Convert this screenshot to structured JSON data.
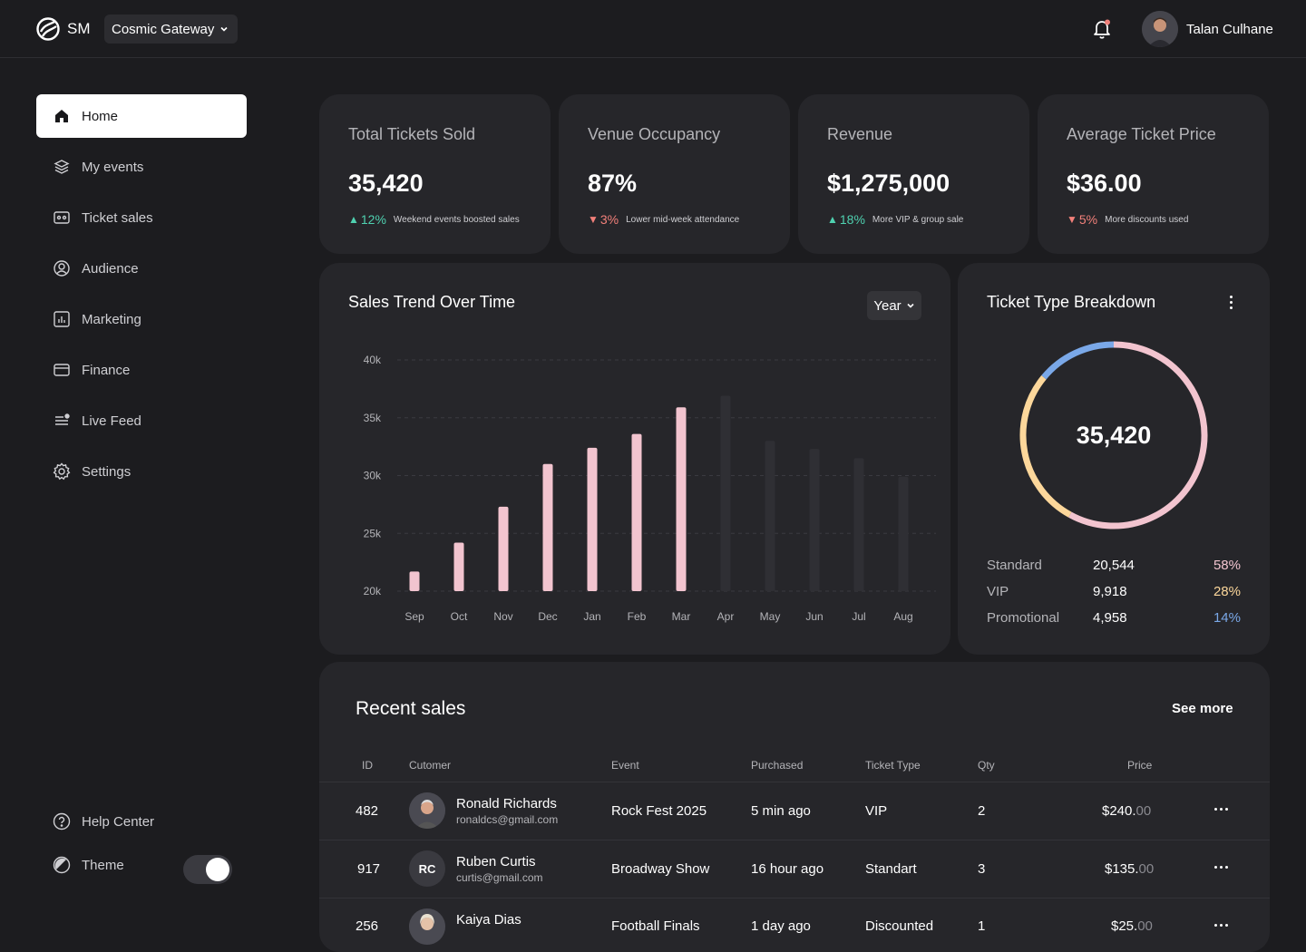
{
  "brand": {
    "logo_text": "SM",
    "org": "Cosmic Gateway"
  },
  "user": {
    "name": "Talan Culhane"
  },
  "sidebar": {
    "items": [
      {
        "label": "Home",
        "icon": "home-icon"
      },
      {
        "label": "My events",
        "icon": "layers-icon"
      },
      {
        "label": "Ticket sales",
        "icon": "ticket-icon"
      },
      {
        "label": "Audience",
        "icon": "user-icon"
      },
      {
        "label": "Marketing",
        "icon": "bar-chart-icon"
      },
      {
        "label": "Finance",
        "icon": "card-icon"
      },
      {
        "label": "Live Feed",
        "icon": "feed-icon"
      },
      {
        "label": "Settings",
        "icon": "gear-icon"
      }
    ],
    "help": "Help Center",
    "theme": "Theme"
  },
  "kpis": [
    {
      "title": "Total Tickets Sold",
      "value": "35,420",
      "delta": "12%",
      "dir": "up",
      "note": "Weekend events boosted sales"
    },
    {
      "title": "Venue Occupancy",
      "value": "87%",
      "delta": "3%",
      "dir": "down",
      "note": "Lower mid-week attendance"
    },
    {
      "title": "Revenue",
      "value": "$1,275,000",
      "delta": "18%",
      "dir": "up",
      "note": "More VIP & group sale"
    },
    {
      "title": "Average Ticket Price",
      "value": "$36.00",
      "delta": "5%",
      "dir": "down",
      "note": "More discounts used"
    }
  ],
  "trend": {
    "title": "Sales Trend Over Time",
    "period": "Year"
  },
  "chart_data": {
    "type": "bar",
    "categories": [
      "Sep",
      "Oct",
      "Nov",
      "Dec",
      "Jan",
      "Feb",
      "Mar",
      "Apr",
      "May",
      "Jun",
      "Jul",
      "Aug"
    ],
    "values": [
      21700,
      24200,
      27300,
      31000,
      32400,
      33600,
      35900,
      36900,
      33000,
      32300,
      31500,
      29900
    ],
    "highlighted": [
      true,
      true,
      true,
      true,
      true,
      true,
      true,
      false,
      false,
      false,
      false,
      false
    ],
    "ylim": [
      20000,
      40000
    ],
    "yticks": [
      "40k",
      "35k",
      "30k",
      "25k",
      "20k"
    ],
    "ytick_values": [
      40000,
      35000,
      30000,
      25000,
      20000
    ],
    "colors": {
      "active": "#f2c4cf",
      "inactive": "#2f2f34"
    }
  },
  "breakdown": {
    "title": "Ticket Type Breakdown",
    "total": "35,420",
    "rows": [
      {
        "name": "Standard",
        "value": "20,544",
        "pct": "58%",
        "color": "#f2c4cf"
      },
      {
        "name": "VIP",
        "value": "9,918",
        "pct": "28%",
        "color": "#fcd79b"
      },
      {
        "name": "Promotional",
        "value": "4,958",
        "pct": "14%",
        "color": "#7aa8e8"
      }
    ]
  },
  "sales": {
    "title": "Recent sales",
    "see_more": "See  more",
    "headers": {
      "id": "ID",
      "customer": "Cutomer",
      "event": "Event",
      "purchased": "Purchased",
      "type": "Ticket Type",
      "qty": "Qty",
      "price": "Price"
    },
    "rows": [
      {
        "id": "482",
        "name": "Ronald Richards",
        "email": "ronaldcs@gmail.com",
        "initials": "",
        "event": "Rock Fest 2025",
        "purchased": "5 min ago",
        "type": "VIP",
        "qty": "2",
        "price_main": "$240.",
        "price_dec": "00"
      },
      {
        "id": "917",
        "name": "Ruben Curtis",
        "email": "curtis@gmail.com",
        "initials": "RC",
        "event": "Broadway Show",
        "purchased": "16 hour ago",
        "type": "Standart",
        "qty": "3",
        "price_main": "$135.",
        "price_dec": "00"
      },
      {
        "id": "256",
        "name": "Kaiya Dias",
        "email": "",
        "initials": "",
        "event": "Football Finals",
        "purchased": "1 day ago",
        "type": "Discounted",
        "qty": "1",
        "price_main": "$25.",
        "price_dec": "00"
      }
    ]
  }
}
